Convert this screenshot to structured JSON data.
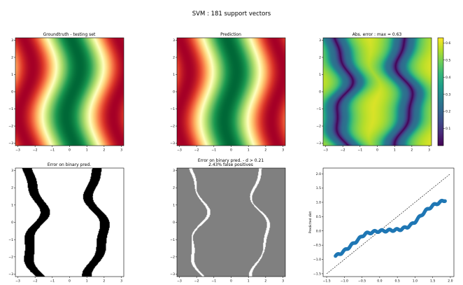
{
  "figure": {
    "suptitle": "SVM : 181 support vectors"
  },
  "colors": {
    "gray_panel": "#808080",
    "scatter_point": "#1f77b4",
    "colormap_field": "RdYlGn",
    "colormap_error": "viridis"
  },
  "chart_data": [
    {
      "type": "heatmap",
      "title": "Groundtruth - testing set",
      "colormap": "RdYlGn",
      "xlim": [
        -3.14,
        3.14
      ],
      "ylim": [
        -3.14,
        3.14
      ],
      "xticks": [
        -3,
        -2,
        -1,
        0,
        1,
        2,
        3
      ],
      "yticks": [
        -3,
        -2,
        -1,
        0,
        1,
        2,
        3
      ]
    },
    {
      "type": "heatmap",
      "title": "Prediction",
      "colormap": "RdYlGn",
      "xlim": [
        -3.14,
        3.14
      ],
      "ylim": [
        -3.14,
        3.14
      ],
      "xticks": [
        -3,
        -2,
        -1,
        0,
        1,
        2,
        3
      ],
      "yticks": [
        -3,
        -2,
        -1,
        0,
        1,
        2,
        3
      ]
    },
    {
      "type": "heatmap",
      "title": "Abs. error : max = 0.63",
      "colormap": "viridis",
      "xlim": [
        -3.14,
        3.14
      ],
      "ylim": [
        -3.14,
        3.14
      ],
      "xticks": [
        -3,
        -2,
        -1,
        0,
        1,
        2,
        3
      ],
      "yticks": [
        -3,
        -2,
        -1,
        0,
        1,
        2,
        3
      ],
      "colorbar": {
        "range": [
          0.0,
          0.63
        ],
        "ticks": [
          0.1,
          0.2,
          0.3,
          0.4,
          0.5,
          0.6
        ]
      }
    },
    {
      "type": "heatmap",
      "title": "Error on binary pred.",
      "colormap": "binary",
      "xlim": [
        -3.14,
        3.14
      ],
      "ylim": [
        -3.14,
        3.14
      ],
      "xticks": [
        -3,
        -2,
        -1,
        0,
        1,
        2,
        3
      ],
      "yticks": [
        -3,
        -2,
        -1,
        0,
        1,
        2,
        3
      ]
    },
    {
      "type": "heatmap",
      "title": [
        "Error on binary pred. - d > 0.21",
        "2.43% false positives"
      ],
      "colormap": "gray",
      "xlim": [
        -3.14,
        3.14
      ],
      "ylim": [
        -3.14,
        3.14
      ],
      "xticks": [
        -3,
        -2,
        -1,
        0,
        1,
        2,
        3
      ],
      "yticks": [
        -3,
        -2,
        -1,
        0,
        1,
        2,
        3
      ]
    },
    {
      "type": "scatter",
      "title": "",
      "xlabel": "",
      "ylabel": "Predicted dist",
      "xlim": [
        -1.6,
        2.1
      ],
      "ylim": [
        -1.6,
        2.2
      ],
      "xticks": [
        -1.5,
        -1.0,
        -0.5,
        0.0,
        0.5,
        1.0,
        1.5,
        2.0
      ],
      "yticks": [
        -1.5,
        -1.0,
        -0.5,
        0.0,
        0.5,
        1.0,
        1.5,
        2.0
      ],
      "reference_line": {
        "x": [
          -1.5,
          2.0
        ],
        "y": [
          -1.5,
          2.0
        ],
        "style": "dashed"
      },
      "x": [
        -1.25,
        -1.2,
        -1.1,
        -1.0,
        -0.9,
        -0.8,
        -0.7,
        -0.6,
        -0.5,
        -0.4,
        -0.3,
        -0.2,
        -0.1,
        0.0,
        0.1,
        0.2,
        0.3,
        0.4,
        0.5,
        0.6,
        0.7,
        0.8,
        0.9,
        1.0,
        1.1,
        1.2,
        1.3,
        1.4,
        1.5,
        1.6,
        1.7,
        1.8,
        1.85
      ],
      "y": [
        -0.88,
        -0.85,
        -0.78,
        -0.7,
        -0.6,
        -0.5,
        -0.4,
        -0.3,
        -0.18,
        -0.1,
        -0.07,
        -0.04,
        -0.02,
        0.0,
        0.0,
        0.01,
        0.02,
        0.03,
        0.04,
        0.06,
        0.1,
        0.15,
        0.22,
        0.32,
        0.45,
        0.58,
        0.7,
        0.8,
        0.88,
        0.95,
        1.0,
        1.05,
        1.08
      ]
    }
  ]
}
